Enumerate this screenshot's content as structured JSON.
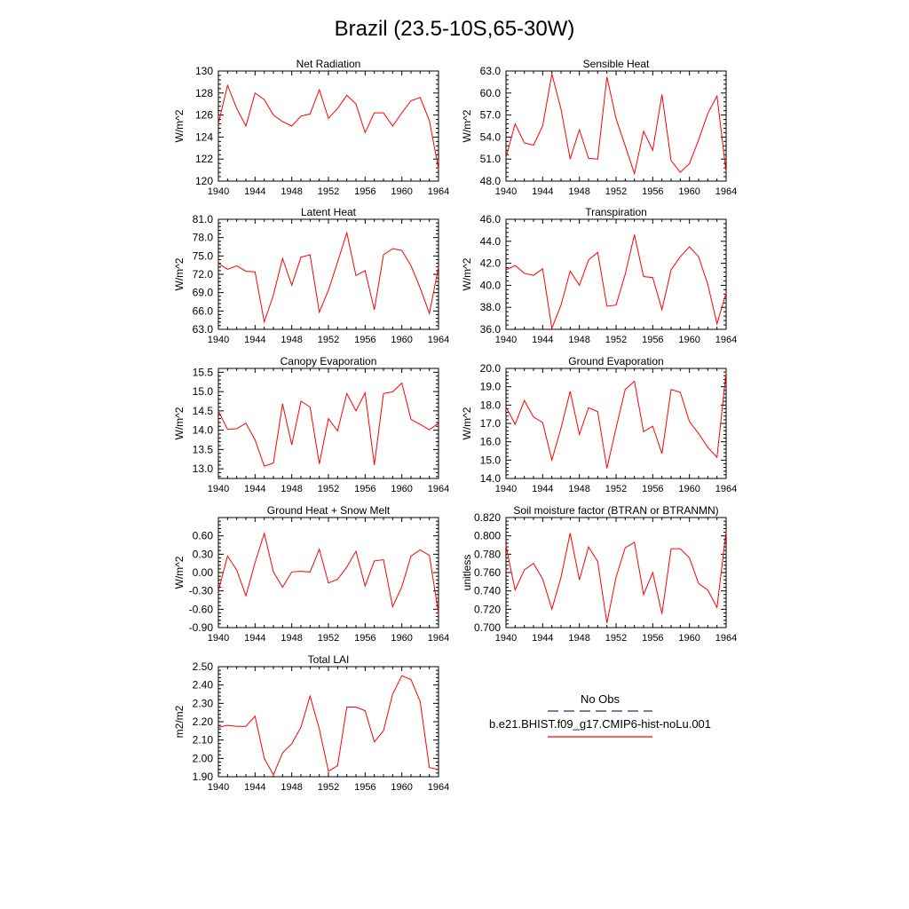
{
  "figure": {
    "title": "Brazil (23.5-10S,65-30W)",
    "line_color": "#ff0000",
    "obs_color": "#2b2b6b"
  },
  "legend": {
    "entries": [
      {
        "label": "No Obs",
        "style": "dashed",
        "color": "#2b2b6b"
      },
      {
        "label": "b.e21.BHIST.f09_g17.CMIP6-hist-noLu.001",
        "style": "solid",
        "color": "#ff0000"
      }
    ]
  },
  "chart_data": [
    {
      "type": "line",
      "title": "Net Radiation",
      "xlabel": "",
      "ylabel": "W/m^2",
      "xlim": [
        1940,
        1964
      ],
      "ylim": [
        120,
        130
      ],
      "xticks": [
        "1940",
        "1944",
        "1948",
        "1952",
        "1956",
        "1960",
        "1964"
      ],
      "yticks": [
        "120",
        "122",
        "124",
        "126",
        "128",
        "130"
      ],
      "series": [
        {
          "values": [
            125.2,
            128.7,
            126.6,
            125.0,
            128.0,
            127.4,
            126.0,
            125.4,
            125.0,
            125.9,
            126.1,
            128.3,
            125.7,
            126.6,
            127.8,
            127.0,
            124.4,
            126.2,
            126.2,
            125.0,
            126.2,
            127.3,
            127.6,
            125.5,
            121.1
          ]
        }
      ]
    },
    {
      "type": "line",
      "title": "Sensible Heat",
      "xlabel": "",
      "ylabel": "W/m^2",
      "xlim": [
        1940,
        1964
      ],
      "ylim": [
        48.0,
        63.0
      ],
      "xticks": [
        "1940",
        "1944",
        "1948",
        "1952",
        "1956",
        "1960",
        "1964"
      ],
      "yticks": [
        "48.0",
        "51.0",
        "54.0",
        "57.0",
        "60.0",
        "63.0"
      ],
      "series": [
        {
          "values": [
            51.2,
            55.8,
            53.2,
            52.9,
            55.5,
            62.6,
            57.8,
            51.0,
            55.0,
            51.1,
            51.0,
            62.2,
            56.5,
            52.8,
            49.0,
            54.8,
            52.2,
            59.8,
            50.8,
            49.2,
            50.4,
            53.6,
            57.2,
            59.6,
            49.2
          ]
        }
      ]
    },
    {
      "type": "line",
      "title": "Latent Heat",
      "xlabel": "",
      "ylabel": "W/m^2",
      "xlim": [
        1940,
        1964
      ],
      "ylim": [
        63.0,
        81.0
      ],
      "xticks": [
        "1940",
        "1944",
        "1948",
        "1952",
        "1956",
        "1960",
        "1964"
      ],
      "yticks": [
        "63.0",
        "66.0",
        "69.0",
        "72.0",
        "75.0",
        "78.0",
        "81.0"
      ],
      "series": [
        {
          "values": [
            73.8,
            72.8,
            73.4,
            72.5,
            72.4,
            64.2,
            68.6,
            74.6,
            70.2,
            74.8,
            75.2,
            65.8,
            69.4,
            74.0,
            78.8,
            71.8,
            72.6,
            66.2,
            75.2,
            76.2,
            75.9,
            73.4,
            69.8,
            65.6,
            73.2
          ]
        }
      ]
    },
    {
      "type": "line",
      "title": "Transpiration",
      "xlabel": "",
      "ylabel": "W/m^2",
      "xlim": [
        1940,
        1964
      ],
      "ylim": [
        36.0,
        46.0
      ],
      "xticks": [
        "1940",
        "1944",
        "1948",
        "1952",
        "1956",
        "1960",
        "1964"
      ],
      "yticks": [
        "36.0",
        "38.0",
        "40.0",
        "42.0",
        "44.0",
        "46.0"
      ],
      "series": [
        {
          "values": [
            41.4,
            41.8,
            41.1,
            40.9,
            41.5,
            36.1,
            38.2,
            41.3,
            40.0,
            42.3,
            43.0,
            38.1,
            38.2,
            41.0,
            44.6,
            40.8,
            40.7,
            37.8,
            41.4,
            42.6,
            43.5,
            42.6,
            40.1,
            36.5,
            39.3
          ]
        }
      ]
    },
    {
      "type": "line",
      "title": "Canopy Evaporation",
      "xlabel": "",
      "ylabel": "W/m^2",
      "xlim": [
        1940,
        1964
      ],
      "ylim": [
        12.75,
        15.6
      ],
      "xticks": [
        "1940",
        "1944",
        "1948",
        "1952",
        "1956",
        "1960",
        "1964"
      ],
      "yticks": [
        "13.0",
        "13.5",
        "14.0",
        "14.5",
        "15.0",
        "15.5"
      ],
      "series": [
        {
          "values": [
            14.5,
            14.02,
            14.04,
            14.18,
            13.75,
            13.07,
            13.15,
            14.68,
            13.62,
            14.75,
            14.6,
            13.13,
            14.3,
            13.98,
            14.95,
            14.5,
            14.97,
            13.1,
            14.95,
            14.99,
            15.22,
            14.28,
            14.15,
            14.01,
            14.18
          ]
        }
      ]
    },
    {
      "type": "line",
      "title": "Ground Evaporation",
      "xlabel": "",
      "ylabel": "W/m^2",
      "xlim": [
        1940,
        1964
      ],
      "ylim": [
        14.0,
        20.0
      ],
      "xticks": [
        "1940",
        "1944",
        "1948",
        "1952",
        "1956",
        "1960",
        "1964"
      ],
      "yticks": [
        "14.0",
        "15.0",
        "16.0",
        "17.0",
        "18.0",
        "19.0",
        "20.0"
      ],
      "series": [
        {
          "values": [
            17.9,
            16.95,
            18.25,
            17.35,
            17.05,
            15.0,
            16.75,
            18.75,
            16.4,
            17.85,
            17.65,
            14.55,
            16.75,
            18.85,
            19.3,
            16.55,
            16.85,
            15.35,
            18.85,
            18.7,
            17.1,
            16.45,
            15.7,
            15.15,
            19.8
          ]
        }
      ]
    },
    {
      "type": "line",
      "title": "Ground Heat + Snow Melt",
      "xlabel": "",
      "ylabel": "W/m^2",
      "xlim": [
        1940,
        1964
      ],
      "ylim": [
        -0.9,
        0.9
      ],
      "xticks": [
        "1940",
        "1944",
        "1948",
        "1952",
        "1956",
        "1960",
        "1964"
      ],
      "yticks": [
        "-0.90",
        "-0.60",
        "-0.30",
        "0.00",
        "0.30",
        "0.60"
      ],
      "series": [
        {
          "values": [
            -0.3,
            0.27,
            0.04,
            -0.38,
            0.16,
            0.64,
            0.01,
            -0.24,
            0.01,
            0.02,
            0.01,
            0.38,
            -0.17,
            -0.11,
            0.09,
            0.35,
            -0.22,
            0.19,
            0.21,
            -0.56,
            -0.23,
            0.27,
            0.37,
            0.28,
            -0.67
          ]
        }
      ]
    },
    {
      "type": "line",
      "title": "Soil moisture factor (BTRAN or BTRANMN)",
      "xlabel": "",
      "ylabel": "unitless",
      "xlim": [
        1940,
        1964
      ],
      "ylim": [
        0.7,
        0.82
      ],
      "xticks": [
        "1940",
        "1944",
        "1948",
        "1952",
        "1956",
        "1960",
        "1964"
      ],
      "yticks": [
        "0.700",
        "0.720",
        "0.740",
        "0.760",
        "0.780",
        "0.800",
        "0.820"
      ],
      "series": [
        {
          "values": [
            0.789,
            0.741,
            0.763,
            0.77,
            0.753,
            0.72,
            0.755,
            0.803,
            0.752,
            0.788,
            0.772,
            0.705,
            0.755,
            0.787,
            0.793,
            0.736,
            0.76,
            0.715,
            0.786,
            0.786,
            0.776,
            0.748,
            0.741,
            0.722,
            0.805
          ]
        }
      ]
    },
    {
      "type": "line",
      "title": "Total LAI",
      "xlabel": "",
      "ylabel": "m2/m2",
      "xlim": [
        1940,
        1964
      ],
      "ylim": [
        1.9,
        2.5
      ],
      "xticks": [
        "1940",
        "1944",
        "1948",
        "1952",
        "1956",
        "1960",
        "1964"
      ],
      "yticks": [
        "1.90",
        "2.00",
        "2.10",
        "2.20",
        "2.30",
        "2.40",
        "2.50"
      ],
      "series": [
        {
          "values": [
            2.17,
            2.18,
            2.175,
            2.175,
            2.23,
            2.0,
            1.91,
            2.03,
            2.08,
            2.17,
            2.34,
            2.16,
            1.93,
            1.96,
            2.28,
            2.28,
            2.26,
            2.09,
            2.15,
            2.35,
            2.45,
            2.43,
            2.31,
            1.95,
            1.94
          ]
        }
      ]
    }
  ]
}
